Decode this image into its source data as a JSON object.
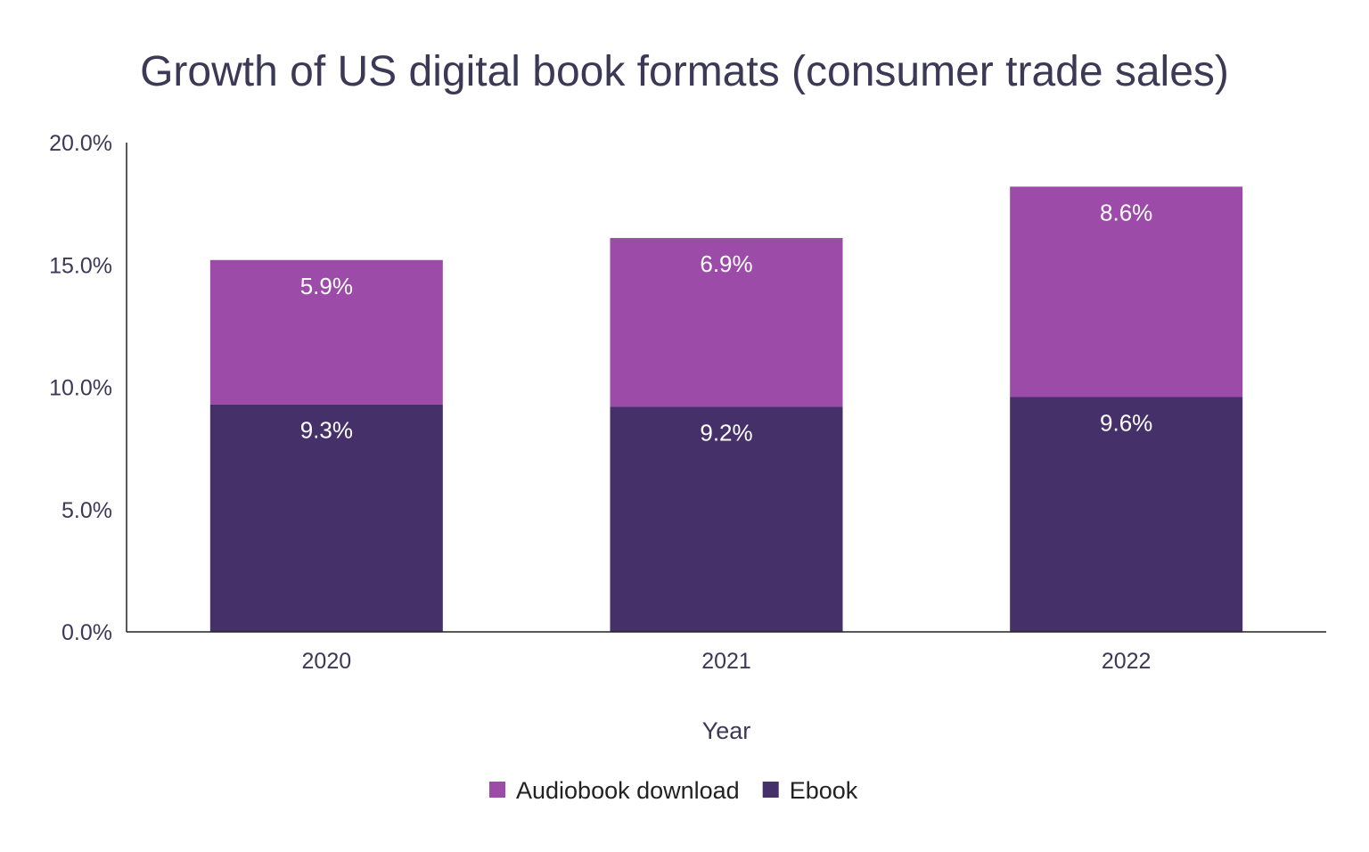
{
  "chart_data": {
    "type": "bar",
    "stacked": true,
    "title": "Growth of US digital book formats (consumer trade sales)",
    "xlabel": "Year",
    "ylabel": "",
    "categories": [
      "2020",
      "2021",
      "2022"
    ],
    "series": [
      {
        "name": "Ebook",
        "values": [
          9.3,
          9.2,
          9.6
        ],
        "labels": [
          "9.3%",
          "9.2%",
          "9.6%"
        ],
        "color": "#45306a"
      },
      {
        "name": "Audiobook download",
        "values": [
          5.9,
          6.9,
          8.6
        ],
        "labels": [
          "5.9%",
          "6.9%",
          "8.6%"
        ],
        "color": "#9c4ca8"
      }
    ],
    "ylim": [
      0,
      20
    ],
    "yticks": [
      0,
      5,
      10,
      15,
      20
    ],
    "ytick_labels": [
      "0.0%",
      "5.0%",
      "10.0%",
      "15.0%",
      "20.0%"
    ],
    "grid": false,
    "legend": {
      "placement": "bottom",
      "order": [
        "Audiobook download",
        "Ebook"
      ]
    },
    "text_color": "#3c3956"
  }
}
